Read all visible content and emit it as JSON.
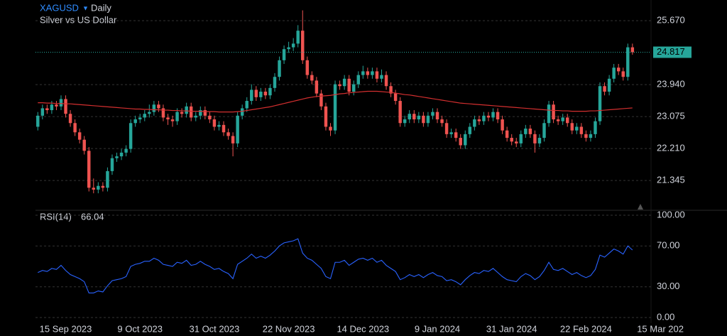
{
  "chart_data": [
    {
      "type": "candlestick",
      "title": "XAGUSD",
      "interval": "Daily",
      "subtitle": "Silver vs US Dollar",
      "up_color": "#26a69a",
      "down_color": "#ef5350",
      "open": [
        22.8,
        23.1,
        23.3,
        23.25,
        23.4,
        23.35,
        23.55,
        23.15,
        22.9,
        22.65,
        22.45,
        22.15,
        21.15,
        21.1,
        21.2,
        21.15,
        21.6,
        21.95,
        22.0,
        22.1,
        22.2,
        22.9,
        23.0,
        23.05,
        23.15,
        23.2,
        23.4,
        23.3,
        23.05,
        23.0,
        22.95,
        23.2,
        23.15,
        23.35,
        23.05,
        23.1,
        23.25,
        23.1,
        23.0,
        22.8,
        22.85,
        22.65,
        22.55,
        22.35,
        23.1,
        23.3,
        23.5,
        23.8,
        23.6,
        23.75,
        23.65,
        23.85,
        24.15,
        24.6,
        24.9,
        24.95,
        25.05,
        25.4,
        24.6,
        24.2,
        24.05,
        23.7,
        23.35,
        22.8,
        22.7,
        23.95,
        23.9,
        24.1,
        23.75,
        23.95,
        24.2,
        24.3,
        24.2,
        24.3,
        24.1,
        24.2,
        23.9,
        23.7,
        23.5,
        22.9,
        23.0,
        23.15,
        23.0,
        23.1,
        22.9,
        23.1,
        23.2,
        23.0,
        22.9,
        22.6,
        22.65,
        22.5,
        22.3,
        22.6,
        22.8,
        23.0,
        22.95,
        23.1,
        23.05,
        23.2,
        23.0,
        22.7,
        22.5,
        22.4,
        22.35,
        22.6,
        22.75,
        22.6,
        22.35,
        22.5,
        22.9,
        23.4,
        23.0,
        22.95,
        23.05,
        22.9,
        22.7,
        22.8,
        22.6,
        22.5,
        22.6,
        22.95,
        23.9,
        23.75,
        24.1,
        24.4,
        24.3,
        24.15,
        24.95
      ],
      "high": [
        23.2,
        23.4,
        23.4,
        23.5,
        23.5,
        23.65,
        23.65,
        23.25,
        23.0,
        22.75,
        22.55,
        22.25,
        21.4,
        21.3,
        21.3,
        21.7,
        22.05,
        22.1,
        22.2,
        22.3,
        23.0,
        23.1,
        23.15,
        23.25,
        23.4,
        23.5,
        23.5,
        23.4,
        23.15,
        23.1,
        23.3,
        23.3,
        23.45,
        23.45,
        23.2,
        23.35,
        23.35,
        23.2,
        23.1,
        22.95,
        22.95,
        22.75,
        22.65,
        23.2,
        23.4,
        23.6,
        23.95,
        23.9,
        23.85,
        23.85,
        23.95,
        24.25,
        24.7,
        25.0,
        25.1,
        25.2,
        25.55,
        25.95,
        24.7,
        24.3,
        24.15,
        23.8,
        23.45,
        22.9,
        24.05,
        24.05,
        24.2,
        24.2,
        24.05,
        24.3,
        24.45,
        24.4,
        24.4,
        24.4,
        24.35,
        24.3,
        24.0,
        23.8,
        23.6,
        23.1,
        23.25,
        23.25,
        23.2,
        23.2,
        23.2,
        23.3,
        23.3,
        23.1,
        23.0,
        22.75,
        22.75,
        22.6,
        22.7,
        22.9,
        23.1,
        23.1,
        23.2,
        23.2,
        23.3,
        23.3,
        23.1,
        22.8,
        22.6,
        22.5,
        22.7,
        22.85,
        22.85,
        22.7,
        22.6,
        23.0,
        23.5,
        23.5,
        23.1,
        23.15,
        23.15,
        23.0,
        22.9,
        22.9,
        22.7,
        22.7,
        23.05,
        24.0,
        24.0,
        24.2,
        24.5,
        24.5,
        24.4,
        25.05,
        25.05
      ],
      "low": [
        22.7,
        23.0,
        23.15,
        23.15,
        23.25,
        23.25,
        23.05,
        22.8,
        22.55,
        22.35,
        22.05,
        21.05,
        21.0,
        21.0,
        21.05,
        21.05,
        21.5,
        21.85,
        21.9,
        22.0,
        22.1,
        22.8,
        22.9,
        22.95,
        23.05,
        23.1,
        23.2,
        22.95,
        22.85,
        22.8,
        22.85,
        23.05,
        23.05,
        22.95,
        22.95,
        23.0,
        23.0,
        22.9,
        22.7,
        22.7,
        22.55,
        22.45,
        22.0,
        22.25,
        23.0,
        23.2,
        23.4,
        23.5,
        23.5,
        23.55,
        23.55,
        23.75,
        24.05,
        24.5,
        24.8,
        24.85,
        24.95,
        24.5,
        24.1,
        23.95,
        23.6,
        23.25,
        22.7,
        22.55,
        22.6,
        23.8,
        23.8,
        23.65,
        23.65,
        23.85,
        24.1,
        24.1,
        24.1,
        24.0,
        24.0,
        23.8,
        23.6,
        23.4,
        22.8,
        22.8,
        22.9,
        22.9,
        22.9,
        22.8,
        22.8,
        23.0,
        22.9,
        22.8,
        22.5,
        22.5,
        22.4,
        22.2,
        22.2,
        22.5,
        22.7,
        22.85,
        22.85,
        22.95,
        22.95,
        22.9,
        22.6,
        22.4,
        22.3,
        22.25,
        22.25,
        22.5,
        22.5,
        22.1,
        22.25,
        22.4,
        22.8,
        22.9,
        22.85,
        22.85,
        22.8,
        22.6,
        22.6,
        22.5,
        22.4,
        22.4,
        22.5,
        22.85,
        23.65,
        23.65,
        24.0,
        24.2,
        24.05,
        24.05,
        24.75
      ],
      "close": [
        23.1,
        23.3,
        23.25,
        23.4,
        23.35,
        23.55,
        23.15,
        22.9,
        22.65,
        22.45,
        22.15,
        21.15,
        21.1,
        21.2,
        21.15,
        21.6,
        21.95,
        22.0,
        22.1,
        22.2,
        22.9,
        23.0,
        23.05,
        23.15,
        23.2,
        23.4,
        23.3,
        23.05,
        23.0,
        22.95,
        23.2,
        23.15,
        23.35,
        23.05,
        23.1,
        23.25,
        23.1,
        23.0,
        22.8,
        22.85,
        22.65,
        22.55,
        22.35,
        23.1,
        23.3,
        23.5,
        23.8,
        23.6,
        23.75,
        23.65,
        23.85,
        24.15,
        24.6,
        24.9,
        24.95,
        25.05,
        25.4,
        24.6,
        24.2,
        24.05,
        23.7,
        23.35,
        22.8,
        22.7,
        23.95,
        23.9,
        24.1,
        23.75,
        23.95,
        24.2,
        24.3,
        24.2,
        24.3,
        24.1,
        24.2,
        23.9,
        23.7,
        23.5,
        22.9,
        23.0,
        23.15,
        23.0,
        23.1,
        22.9,
        23.1,
        23.2,
        23.0,
        22.9,
        22.6,
        22.65,
        22.5,
        22.3,
        22.6,
        22.8,
        23.0,
        22.95,
        23.1,
        23.05,
        23.2,
        23.0,
        22.7,
        22.5,
        22.4,
        22.35,
        22.6,
        22.75,
        22.6,
        22.35,
        22.5,
        22.9,
        23.4,
        23.0,
        22.95,
        23.05,
        22.9,
        22.7,
        22.8,
        22.6,
        22.5,
        22.6,
        22.95,
        23.9,
        23.75,
        24.1,
        24.4,
        24.3,
        24.15,
        24.95,
        24.817
      ],
      "moving_average": {
        "color": "#d32f2f",
        "values": [
          23.45,
          23.45,
          23.44,
          23.44,
          23.43,
          23.43,
          23.42,
          23.42,
          23.41,
          23.4,
          23.39,
          23.38,
          23.37,
          23.36,
          23.35,
          23.34,
          23.33,
          23.32,
          23.31,
          23.3,
          23.29,
          23.28,
          23.28,
          23.27,
          23.27,
          23.26,
          23.26,
          23.25,
          23.25,
          23.24,
          23.24,
          23.23,
          23.23,
          23.22,
          23.22,
          23.22,
          23.21,
          23.21,
          23.21,
          23.2,
          23.2,
          23.2,
          23.2,
          23.21,
          23.22,
          23.24,
          23.26,
          23.28,
          23.3,
          23.32,
          23.34,
          23.37,
          23.4,
          23.43,
          23.46,
          23.49,
          23.52,
          23.55,
          23.58,
          23.6,
          23.62,
          23.63,
          23.64,
          23.65,
          23.67,
          23.69,
          23.7,
          23.72,
          23.73,
          23.74,
          23.75,
          23.76,
          23.76,
          23.76,
          23.75,
          23.74,
          23.73,
          23.71,
          23.69,
          23.67,
          23.66,
          23.64,
          23.62,
          23.6,
          23.58,
          23.56,
          23.54,
          23.52,
          23.5,
          23.48,
          23.46,
          23.44,
          23.43,
          23.42,
          23.41,
          23.4,
          23.39,
          23.38,
          23.37,
          23.36,
          23.35,
          23.34,
          23.33,
          23.32,
          23.31,
          23.3,
          23.29,
          23.28,
          23.27,
          23.26,
          23.25,
          23.24,
          23.24,
          23.23,
          23.23,
          23.22,
          23.22,
          23.22,
          23.22,
          23.23,
          23.23,
          23.24,
          23.25,
          23.26,
          23.27,
          23.28,
          23.29,
          23.3,
          23.31
        ]
      },
      "ylim": [
        20.56,
        26.23
      ],
      "yticks": [
        21.345,
        {
          "value": 22.21,
          "label": "22.210"
        },
        23.075,
        {
          "value": 23.94,
          "label": "23.940"
        },
        {
          "value": 25.67,
          "label": "25.670"
        }
      ],
      "grid": true
    },
    {
      "type": "line",
      "title": "RSI(14)",
      "color": "#2962ff",
      "values": [
        44,
        46,
        45,
        48,
        47,
        51,
        46,
        42,
        40,
        38,
        35,
        24,
        24,
        26,
        25,
        31,
        36,
        37,
        38,
        40,
        50,
        52,
        53,
        55,
        55,
        58,
        56,
        52,
        51,
        50,
        54,
        53,
        56,
        51,
        52,
        55,
        52,
        50,
        47,
        48,
        45,
        43,
        38,
        52,
        55,
        58,
        62,
        58,
        60,
        58,
        61,
        65,
        70,
        73,
        74,
        75,
        77,
        63,
        58,
        56,
        52,
        48,
        40,
        38,
        54,
        54,
        56,
        51,
        54,
        57,
        58,
        56,
        58,
        54,
        56,
        51,
        48,
        45,
        37,
        39,
        42,
        40,
        42,
        39,
        42,
        44,
        41,
        40,
        36,
        37,
        35,
        32,
        37,
        41,
        44,
        43,
        46,
        45,
        48,
        44,
        40,
        37,
        36,
        35,
        40,
        43,
        41,
        37,
        40,
        46,
        54,
        47,
        46,
        48,
        45,
        42,
        44,
        41,
        39,
        41,
        47,
        61,
        59,
        63,
        67,
        65,
        62,
        70,
        66.04
      ],
      "ylim": [
        -5.6,
        104.2
      ],
      "yticks": [
        {
          "value": 0,
          "label": "0.00"
        },
        {
          "value": 30,
          "label": "30.00"
        },
        {
          "value": 70,
          "label": "70.00"
        },
        {
          "value": 100,
          "label": "100.00"
        }
      ],
      "xlim": [
        -0.5,
        132
      ],
      "xticks": [
        {
          "value": 6,
          "label": "15 Sep 2023"
        },
        {
          "value": 22,
          "label": "9 Oct 2023"
        },
        {
          "value": 38,
          "label": "31 Oct 2023"
        },
        {
          "value": 54,
          "label": "22 Nov 2023"
        },
        {
          "value": 70,
          "label": "14 Dec 2023"
        },
        {
          "value": 86,
          "label": "9 Jan 2024"
        },
        {
          "value": 102,
          "label": "31 Jan 2024"
        },
        {
          "value": 118,
          "label": "22 Feb 2024"
        },
        {
          "value": 134,
          "label": "15 Mar 202"
        }
      ],
      "grid": true
    }
  ]
}
